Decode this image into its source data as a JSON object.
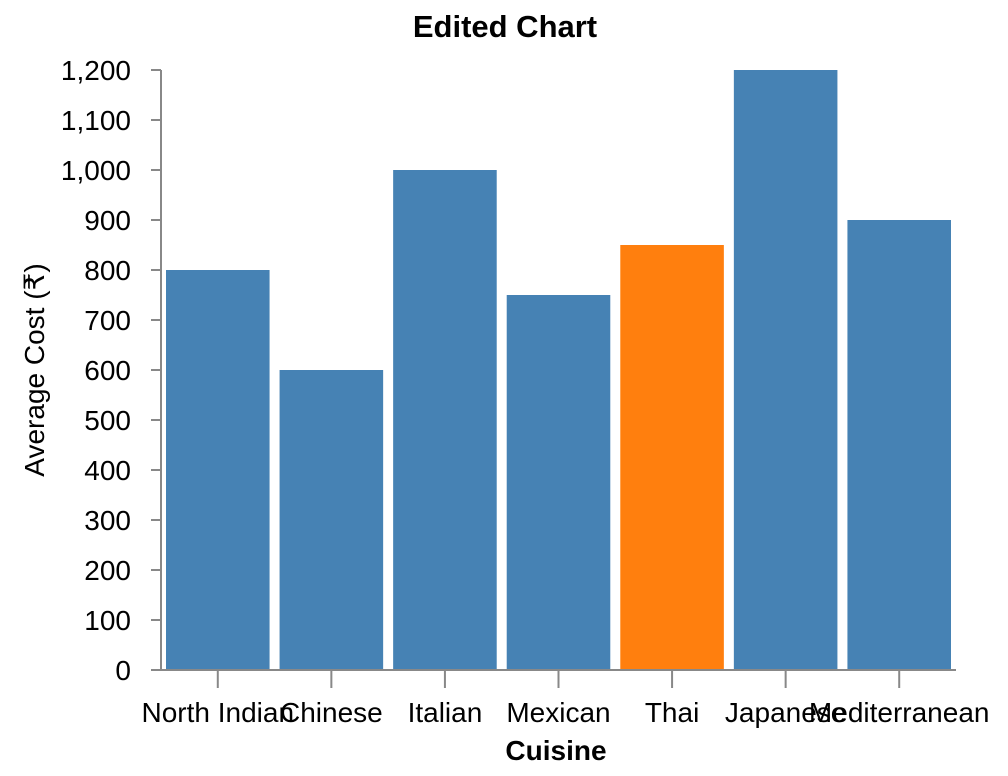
{
  "chart_data": {
    "type": "bar",
    "title": "Edited Chart",
    "xlabel": "Cuisine",
    "ylabel": "Average Cost (₹)",
    "categories": [
      "North Indian",
      "Chinese",
      "Italian",
      "Mexican",
      "Thai",
      "Japanese",
      "Mediterranean"
    ],
    "values": [
      800,
      600,
      1000,
      750,
      850,
      1200,
      900
    ],
    "highlight_category": "Thai",
    "ylim": [
      0,
      1200
    ],
    "yticks": [
      0,
      100,
      200,
      300,
      400,
      500,
      600,
      700,
      800,
      900,
      1000,
      1100,
      1200
    ],
    "ytick_labels": [
      "0",
      "100",
      "200",
      "300",
      "400",
      "500",
      "600",
      "700",
      "800",
      "900",
      "1,000",
      "1,100",
      "1,200"
    ],
    "grid": false,
    "colors": {
      "bar": "#4682b4",
      "highlight": "#ff7f0e"
    }
  }
}
